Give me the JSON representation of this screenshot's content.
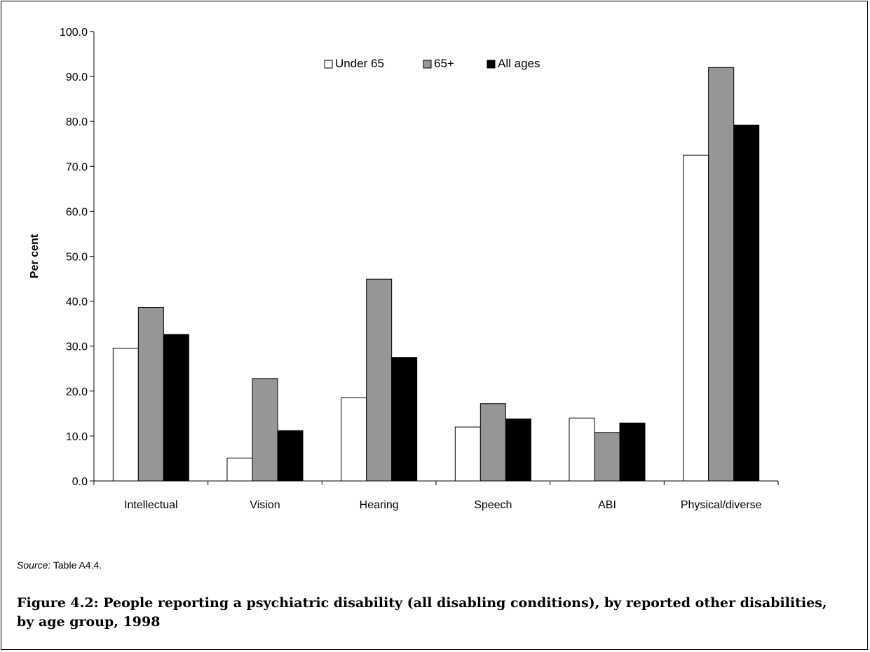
{
  "chart_data": {
    "type": "bar",
    "categories": [
      "Intellectual",
      "Vision",
      "Hearing",
      "Speech",
      "ABI",
      "Physical/diverse"
    ],
    "series": [
      {
        "name": "Under 65",
        "color": "#ffffff",
        "values": [
          29.5,
          5.1,
          18.5,
          12.0,
          14.0,
          72.5
        ]
      },
      {
        "name": "65+",
        "color": "#969696",
        "values": [
          38.6,
          22.8,
          44.9,
          17.2,
          10.8,
          92.0
        ]
      },
      {
        "name": "All ages",
        "color": "#000000",
        "values": [
          32.6,
          11.2,
          27.5,
          13.8,
          12.9,
          79.2
        ]
      }
    ],
    "ylabel": "Per cent",
    "ylim": [
      0,
      100
    ],
    "yticks": [
      "0.0",
      "10.0",
      "20.0",
      "30.0",
      "40.0",
      "50.0",
      "60.0",
      "70.0",
      "80.0",
      "90.0",
      "100.0"
    ],
    "grid": false,
    "legend_position": "top-center"
  },
  "source_prefix": "Source:",
  "source_text": " Table A4.4.",
  "caption": "Figure 4.2: People reporting a psychiatric disability (all disabling conditions), by reported other disabilities, by age group, 1998"
}
